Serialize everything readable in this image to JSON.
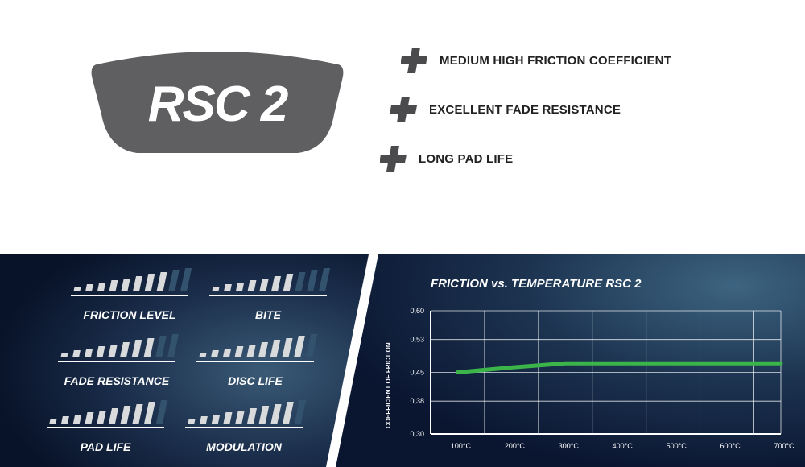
{
  "logo": {
    "text": "RSC 2"
  },
  "features": [
    {
      "label": "MEDIUM HIGH FRICTION COEFFICIENT"
    },
    {
      "label": "EXCELLENT FADE RESISTANCE"
    },
    {
      "label": "LONG PAD LIFE"
    }
  ],
  "colors": {
    "pad": "#5f5f62",
    "plus": "#4b4b4d",
    "panel_dark": "#0b1630",
    "panel_mid": "#2c4a66",
    "bar_light": "#d8dadc",
    "bar_dark": "#33526d",
    "line": "#3bb54a"
  },
  "ratings": [
    {
      "label": "FRICTION LEVEL",
      "level": 8,
      "total": 10
    },
    {
      "label": "BITE",
      "level": 7,
      "total": 10
    },
    {
      "label": "FADE RESISTANCE",
      "level": 8,
      "total": 10
    },
    {
      "label": "DISC LIFE",
      "level": 9,
      "total": 10
    },
    {
      "label": "PAD LIFE",
      "level": 9,
      "total": 10
    },
    {
      "label": "MODULATION",
      "level": 9,
      "total": 10
    }
  ],
  "chart_data": {
    "type": "line",
    "title": "FRICTION vs. TEMPERATURE RSC 2",
    "xlabel": "",
    "ylabel": "COEFFICIENT OF FRICTION",
    "x_ticks": [
      "100°C",
      "200°C",
      "300°C",
      "400°C",
      "500°C",
      "600°C",
      "700°C"
    ],
    "y_ticks": [
      "0,60",
      "0,53",
      "0,45",
      "0,38",
      "0,30"
    ],
    "ylim": [
      0.3,
      0.6
    ],
    "grid": true,
    "series": [
      {
        "x": [
          100,
          200,
          300,
          400,
          500,
          600,
          700
        ],
        "y": [
          0.45,
          0.462,
          0.472,
          0.472,
          0.472,
          0.472,
          0.472
        ]
      }
    ]
  }
}
